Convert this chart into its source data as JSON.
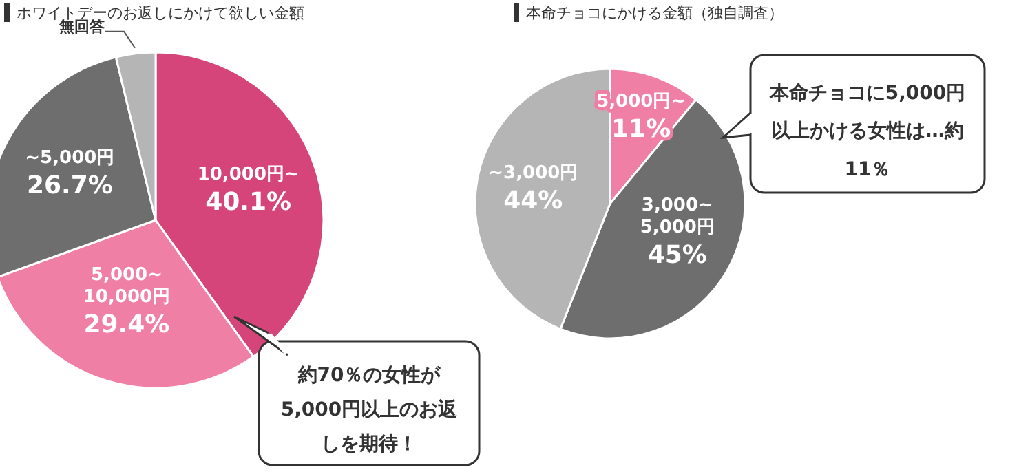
{
  "chart_data": [
    {
      "type": "pie",
      "title": "ホワイトデーのお返しにかけて欲しい金額",
      "categories": [
        "10,000円~",
        "5,000~10,000円",
        "~5,000円",
        "無回答"
      ],
      "values": [
        40.1,
        29.4,
        26.7,
        3.8
      ],
      "colors": [
        "#d6457a",
        "#f07fa5",
        "#6e6e6e",
        "#b5b5b5"
      ],
      "value_labels": [
        "40.1%",
        "29.4%",
        "26.7%",
        null
      ],
      "annotations": [
        "約70％の女性が5,000円以上のお返しを期待！"
      ]
    },
    {
      "type": "pie",
      "title": "本命チョコにかける金額（独自調査）",
      "categories": [
        "5,000円~",
        "3,000~5,000円",
        "~3,000円"
      ],
      "values": [
        11,
        45,
        44
      ],
      "colors": [
        "#f07fa5",
        "#6e6e6e",
        "#b5b5b5"
      ],
      "value_labels": [
        "11%",
        "45%",
        "44%"
      ],
      "annotations": [
        "本命チョコに5,000円以上かける女性は…約11％"
      ]
    }
  ]
}
